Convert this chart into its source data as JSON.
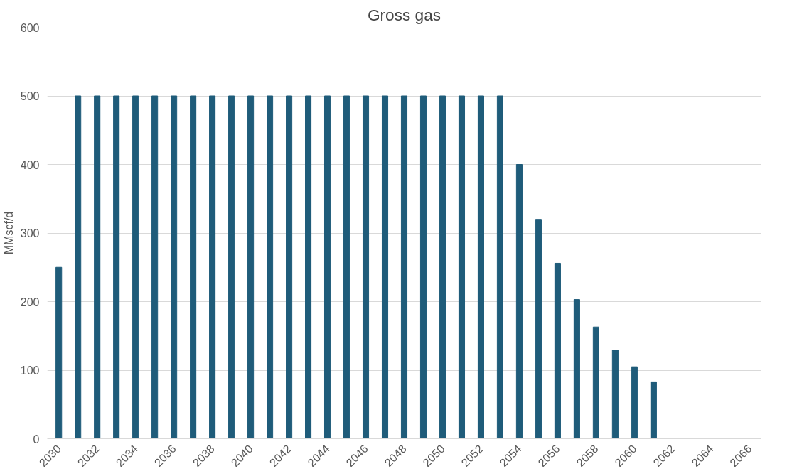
{
  "chart_data": {
    "type": "bar",
    "title": "Gross gas",
    "ylabel": "MMscf/d",
    "categories": [
      "2030",
      null,
      "2032",
      null,
      "2034",
      null,
      "2036",
      null,
      "2038",
      null,
      "2040",
      null,
      "2042",
      null,
      "2044",
      null,
      "2046",
      null,
      "2048",
      null,
      "2050",
      null,
      "2052",
      null,
      "2054",
      null,
      "2056",
      null,
      "2058",
      null,
      "2060",
      null,
      "2062",
      null,
      "2064",
      null,
      "2066"
    ],
    "values": [
      250,
      500,
      500,
      500,
      500,
      500,
      500,
      500,
      500,
      500,
      500,
      500,
      500,
      500,
      500,
      500,
      500,
      500,
      500,
      500,
      500,
      500,
      500,
      500,
      400,
      320,
      256,
      203,
      163,
      129,
      105,
      83,
      null,
      null,
      null,
      null,
      null
    ],
    "color": "#1f5c7a",
    "ylim": [
      0,
      600
    ],
    "yticks": [
      0,
      100,
      200,
      300,
      400,
      500,
      600
    ],
    "grid": "y"
  }
}
